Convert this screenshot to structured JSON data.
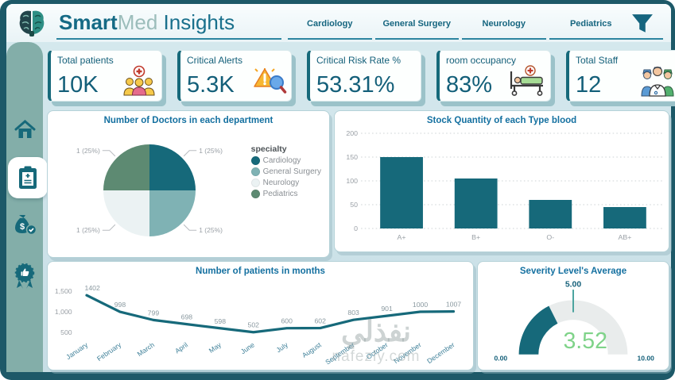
{
  "header": {
    "brand_bold": "Smart",
    "brand_light": "Med",
    "brand_suffix": " Insights",
    "tabs": [
      {
        "label": "Cardiology"
      },
      {
        "label": "General Surgery"
      },
      {
        "label": "Neurology"
      },
      {
        "label": "Pediatrics"
      }
    ],
    "accent_color": "#2d85a0"
  },
  "sidebar": {
    "items": [
      {
        "name": "home",
        "icon": "home-icon",
        "active": false
      },
      {
        "name": "records",
        "icon": "clipboard-icon",
        "active": true
      },
      {
        "name": "finance",
        "icon": "money-bag-icon",
        "active": false
      },
      {
        "name": "quality",
        "icon": "award-icon",
        "active": false
      }
    ]
  },
  "kpis": [
    {
      "label": "Total patients",
      "value": "10K",
      "icon": "patients-group-icon"
    },
    {
      "label": "Critical Alerts",
      "value": "5.3K",
      "icon": "alert-magnifier-icon"
    },
    {
      "label": "Critical Risk Rate %",
      "value": "53.31%",
      "icon": null
    },
    {
      "label": "room occupancy",
      "value": "83%",
      "icon": "hospital-bed-icon"
    },
    {
      "label": "Total Staff",
      "value": "12",
      "icon": "medical-staff-icon"
    }
  ],
  "watermark": {
    "arabic": "نفذلي",
    "domain": "nafezly.com"
  },
  "colors": {
    "primary": "#16697a",
    "title_text": "#1470a0",
    "kpi_text": "#135f79",
    "frame": "#1d5968",
    "sidebar_bg": "#83aea9",
    "gauge_value_green": "#7fd389"
  },
  "chart_data": [
    {
      "type": "pie",
      "title": "Number of Doctors in each department",
      "legend_title": "specialty",
      "categories": [
        "Cardiology",
        "General Surgery",
        "Neurology",
        "Pediatrics"
      ],
      "values": [
        1,
        1,
        1,
        1
      ],
      "labels": [
        "1 (25%)",
        "1 (25%)",
        "1 (25%)",
        "1 (25%)"
      ],
      "colors": [
        "#16697a",
        "#7fb2b4",
        "#ebf2f3",
        "#5d8a72"
      ],
      "legend_position": "right"
    },
    {
      "type": "bar",
      "title": "Stock Quantity of each Type blood",
      "categories": [
        "A+",
        "B+",
        "O-",
        "AB+"
      ],
      "values": [
        150,
        105,
        60,
        45
      ],
      "ylim": [
        0,
        200
      ],
      "yticks": [
        0,
        50,
        100,
        150,
        200
      ],
      "bar_color": "#16697a",
      "grid": true
    },
    {
      "type": "line",
      "title": "Number of patients in months",
      "categories": [
        "January",
        "February",
        "March",
        "April",
        "May",
        "June",
        "July",
        "August",
        "September",
        "October",
        "November",
        "December"
      ],
      "values": [
        1402,
        998,
        799,
        698,
        598,
        502,
        600,
        602,
        803,
        901,
        1000,
        1007
      ],
      "yticks": [
        500,
        1000,
        1500
      ],
      "ytick_labels": [
        "500",
        "1,000",
        "1,500"
      ],
      "ylim": [
        400,
        1600
      ],
      "line_color": "#16697a",
      "grid": false
    },
    {
      "type": "gauge",
      "title": "Severity Level's Average",
      "value": 3.52,
      "value_label": "3.52",
      "min": 0,
      "max": 10,
      "target": 5,
      "min_label": "0.00",
      "max_label": "10.00",
      "target_label": "5.00",
      "fill_color": "#16697a",
      "track_color": "#e9ecec",
      "value_color": "#7fd389",
      "tick_color": "#43a09b"
    }
  ]
}
